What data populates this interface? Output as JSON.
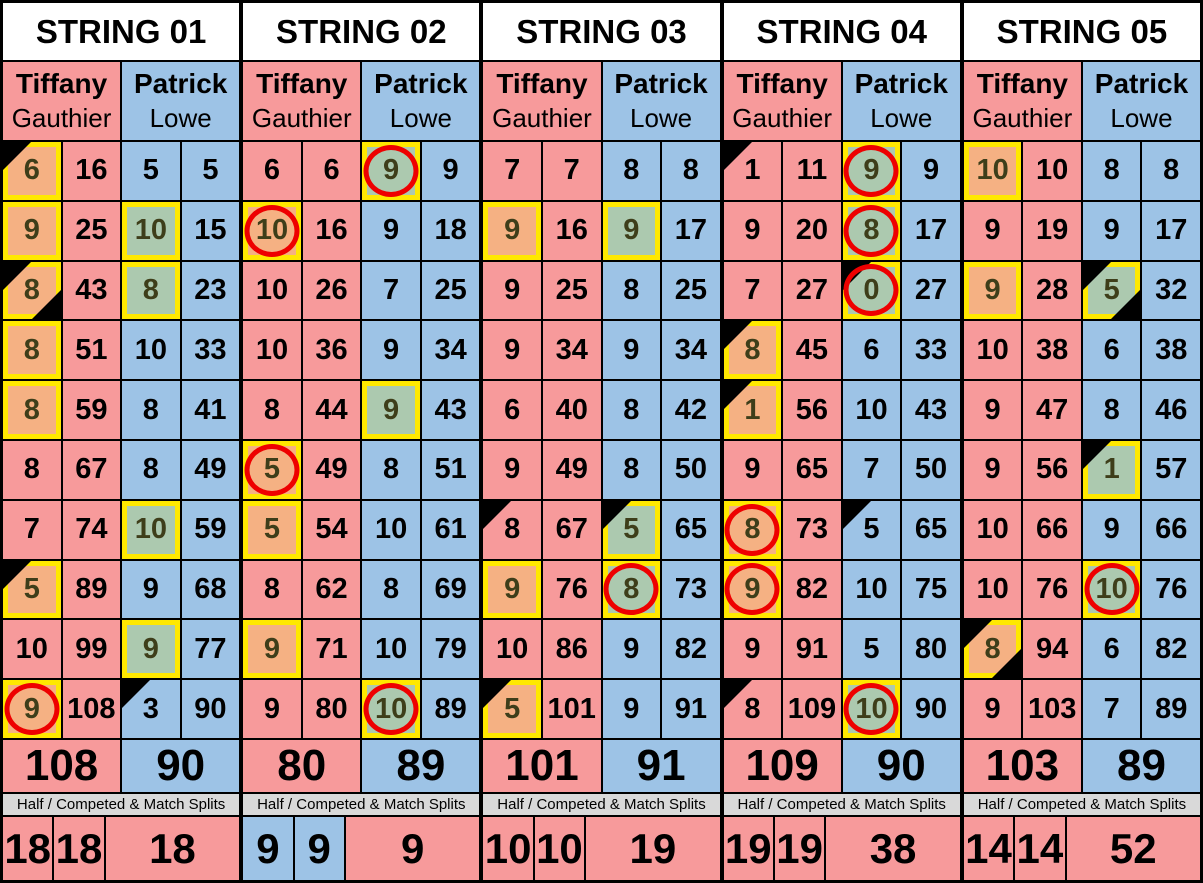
{
  "labels": {
    "splits": "Half / Competed & Match Splits"
  },
  "players": {
    "left": {
      "first": "Tiffany",
      "last": "Gauthier"
    },
    "right": {
      "first": "Patrick",
      "last": "Lowe"
    }
  },
  "colors": {
    "pink": "#F79A9B",
    "blue": "#9DC3E6",
    "orange": "#F5B183",
    "green": "#ACC9AF",
    "yellow": "#FFE800",
    "red": "#EE0000",
    "gray_bar": "#D9D9D9",
    "olive_text": "#3E3E1A"
  },
  "strings": [
    {
      "label": "STRING 01",
      "left": {
        "rows": [
          {
            "score": 6,
            "total": 16,
            "marks": [
              "hl",
              "tri"
            ]
          },
          {
            "score": 9,
            "total": 25,
            "marks": [
              "hl"
            ]
          },
          {
            "score": 8,
            "total": 43,
            "marks": [
              "hl",
              "tri",
              "tribr"
            ]
          },
          {
            "score": 8,
            "total": 51,
            "marks": [
              "hl"
            ]
          },
          {
            "score": 8,
            "total": 59,
            "marks": [
              "hl"
            ]
          },
          {
            "score": 8,
            "total": 67,
            "marks": []
          },
          {
            "score": 7,
            "total": 74,
            "marks": []
          },
          {
            "score": 5,
            "total": 89,
            "marks": [
              "hl",
              "tri"
            ]
          },
          {
            "score": 10,
            "total": 99,
            "marks": []
          },
          {
            "score": 9,
            "total": 108,
            "marks": [
              "hl",
              "circle"
            ]
          }
        ],
        "total": 108
      },
      "right": {
        "rows": [
          {
            "score": 5,
            "total": 5,
            "marks": []
          },
          {
            "score": 10,
            "total": 15,
            "marks": [
              "hl"
            ]
          },
          {
            "score": 8,
            "total": 23,
            "marks": [
              "hl"
            ]
          },
          {
            "score": 10,
            "total": 33,
            "marks": []
          },
          {
            "score": 8,
            "total": 41,
            "marks": []
          },
          {
            "score": 8,
            "total": 49,
            "marks": []
          },
          {
            "score": 10,
            "total": 59,
            "marks": [
              "hl"
            ]
          },
          {
            "score": 9,
            "total": 68,
            "marks": []
          },
          {
            "score": 9,
            "total": 77,
            "marks": [
              "hl"
            ]
          },
          {
            "score": 3,
            "total": 90,
            "marks": [
              "tri"
            ]
          }
        ],
        "total": 90
      },
      "splits": [
        {
          "value": 18,
          "side": "pink"
        },
        {
          "value": 18,
          "side": "pink"
        },
        {
          "value": 18,
          "side": "pink"
        }
      ]
    },
    {
      "label": "STRING 02",
      "left": {
        "rows": [
          {
            "score": 6,
            "total": 6,
            "marks": []
          },
          {
            "score": 10,
            "total": 16,
            "marks": [
              "hl",
              "circle"
            ]
          },
          {
            "score": 10,
            "total": 26,
            "marks": []
          },
          {
            "score": 10,
            "total": 36,
            "marks": []
          },
          {
            "score": 8,
            "total": 44,
            "marks": []
          },
          {
            "score": 5,
            "total": 49,
            "marks": [
              "hl",
              "circle"
            ]
          },
          {
            "score": 5,
            "total": 54,
            "marks": [
              "hl"
            ]
          },
          {
            "score": 8,
            "total": 62,
            "marks": []
          },
          {
            "score": 9,
            "total": 71,
            "marks": [
              "hl"
            ]
          },
          {
            "score": 9,
            "total": 80,
            "marks": []
          }
        ],
        "total": 80
      },
      "right": {
        "rows": [
          {
            "score": 9,
            "total": 9,
            "marks": [
              "hl",
              "circle"
            ]
          },
          {
            "score": 9,
            "total": 18,
            "marks": []
          },
          {
            "score": 7,
            "total": 25,
            "marks": []
          },
          {
            "score": 9,
            "total": 34,
            "marks": []
          },
          {
            "score": 9,
            "total": 43,
            "marks": [
              "hl"
            ]
          },
          {
            "score": 8,
            "total": 51,
            "marks": []
          },
          {
            "score": 10,
            "total": 61,
            "marks": []
          },
          {
            "score": 8,
            "total": 69,
            "marks": []
          },
          {
            "score": 10,
            "total": 79,
            "marks": []
          },
          {
            "score": 10,
            "total": 89,
            "marks": [
              "hl",
              "circle"
            ]
          }
        ],
        "total": 89
      },
      "splits": [
        {
          "value": 9,
          "side": "blue"
        },
        {
          "value": 9,
          "side": "blue"
        },
        {
          "value": 9,
          "side": "pink"
        }
      ]
    },
    {
      "label": "STRING 03",
      "left": {
        "rows": [
          {
            "score": 7,
            "total": 7,
            "marks": []
          },
          {
            "score": 9,
            "total": 16,
            "marks": [
              "hl"
            ]
          },
          {
            "score": 9,
            "total": 25,
            "marks": []
          },
          {
            "score": 9,
            "total": 34,
            "marks": []
          },
          {
            "score": 6,
            "total": 40,
            "marks": []
          },
          {
            "score": 9,
            "total": 49,
            "marks": []
          },
          {
            "score": 8,
            "total": 67,
            "marks": [
              "tri"
            ]
          },
          {
            "score": 9,
            "total": 76,
            "marks": [
              "hl"
            ]
          },
          {
            "score": 10,
            "total": 86,
            "marks": []
          },
          {
            "score": 5,
            "total": 101,
            "marks": [
              "hl",
              "tri"
            ]
          }
        ],
        "total": 101
      },
      "right": {
        "rows": [
          {
            "score": 8,
            "total": 8,
            "marks": []
          },
          {
            "score": 9,
            "total": 17,
            "marks": [
              "hl"
            ]
          },
          {
            "score": 8,
            "total": 25,
            "marks": []
          },
          {
            "score": 9,
            "total": 34,
            "marks": []
          },
          {
            "score": 8,
            "total": 42,
            "marks": []
          },
          {
            "score": 8,
            "total": 50,
            "marks": []
          },
          {
            "score": 5,
            "total": 65,
            "marks": [
              "hl",
              "tri"
            ]
          },
          {
            "score": 8,
            "total": 73,
            "marks": [
              "hl",
              "circle"
            ]
          },
          {
            "score": 9,
            "total": 82,
            "marks": []
          },
          {
            "score": 9,
            "total": 91,
            "marks": []
          }
        ],
        "total": 91
      },
      "splits": [
        {
          "value": 10,
          "side": "pink"
        },
        {
          "value": 10,
          "side": "pink"
        },
        {
          "value": 19,
          "side": "pink"
        }
      ]
    },
    {
      "label": "STRING 04",
      "left": {
        "rows": [
          {
            "score": 1,
            "total": 11,
            "marks": [
              "tri"
            ]
          },
          {
            "score": 9,
            "total": 20,
            "marks": []
          },
          {
            "score": 7,
            "total": 27,
            "marks": []
          },
          {
            "score": 8,
            "total": 45,
            "marks": [
              "hl",
              "tri"
            ]
          },
          {
            "score": 1,
            "total": 56,
            "marks": [
              "hl",
              "tri"
            ]
          },
          {
            "score": 9,
            "total": 65,
            "marks": []
          },
          {
            "score": 8,
            "total": 73,
            "marks": [
              "hl",
              "circle"
            ]
          },
          {
            "score": 9,
            "total": 82,
            "marks": [
              "hl",
              "circle"
            ]
          },
          {
            "score": 9,
            "total": 91,
            "marks": []
          },
          {
            "score": 8,
            "total": 109,
            "marks": [
              "tri"
            ]
          }
        ],
        "total": 109
      },
      "right": {
        "rows": [
          {
            "score": 9,
            "total": 9,
            "marks": [
              "hl",
              "circle"
            ]
          },
          {
            "score": 8,
            "total": 17,
            "marks": [
              "hl",
              "circle"
            ]
          },
          {
            "score": 0,
            "total": 27,
            "marks": [
              "hl",
              "circle",
              "tri"
            ]
          },
          {
            "score": 6,
            "total": 33,
            "marks": []
          },
          {
            "score": 10,
            "total": 43,
            "marks": []
          },
          {
            "score": 7,
            "total": 50,
            "marks": []
          },
          {
            "score": 5,
            "total": 65,
            "marks": [
              "tri"
            ]
          },
          {
            "score": 10,
            "total": 75,
            "marks": []
          },
          {
            "score": 5,
            "total": 80,
            "marks": []
          },
          {
            "score": 10,
            "total": 90,
            "marks": [
              "hl",
              "circle"
            ]
          }
        ],
        "total": 90
      },
      "splits": [
        {
          "value": 19,
          "side": "pink"
        },
        {
          "value": 19,
          "side": "pink"
        },
        {
          "value": 38,
          "side": "pink"
        }
      ]
    },
    {
      "label": "STRING 05",
      "left": {
        "rows": [
          {
            "score": 10,
            "total": 10,
            "marks": [
              "hl"
            ]
          },
          {
            "score": 9,
            "total": 19,
            "marks": []
          },
          {
            "score": 9,
            "total": 28,
            "marks": [
              "hl"
            ]
          },
          {
            "score": 10,
            "total": 38,
            "marks": []
          },
          {
            "score": 9,
            "total": 47,
            "marks": []
          },
          {
            "score": 9,
            "total": 56,
            "marks": []
          },
          {
            "score": 10,
            "total": 66,
            "marks": []
          },
          {
            "score": 10,
            "total": 76,
            "marks": []
          },
          {
            "score": 8,
            "total": 94,
            "marks": [
              "hl",
              "tri",
              "tribr"
            ]
          },
          {
            "score": 9,
            "total": 103,
            "marks": []
          }
        ],
        "total": 103
      },
      "right": {
        "rows": [
          {
            "score": 8,
            "total": 8,
            "marks": []
          },
          {
            "score": 9,
            "total": 17,
            "marks": []
          },
          {
            "score": 5,
            "total": 32,
            "marks": [
              "hl",
              "tri",
              "tribr"
            ]
          },
          {
            "score": 6,
            "total": 38,
            "marks": []
          },
          {
            "score": 8,
            "total": 46,
            "marks": []
          },
          {
            "score": 1,
            "total": 57,
            "marks": [
              "hl",
              "tri"
            ]
          },
          {
            "score": 9,
            "total": 66,
            "marks": []
          },
          {
            "score": 10,
            "total": 76,
            "marks": [
              "hl",
              "circle"
            ]
          },
          {
            "score": 6,
            "total": 82,
            "marks": []
          },
          {
            "score": 7,
            "total": 89,
            "marks": []
          }
        ],
        "total": 89
      },
      "splits": [
        {
          "value": 14,
          "side": "pink"
        },
        {
          "value": 14,
          "side": "pink"
        },
        {
          "value": 52,
          "side": "pink"
        }
      ]
    }
  ]
}
